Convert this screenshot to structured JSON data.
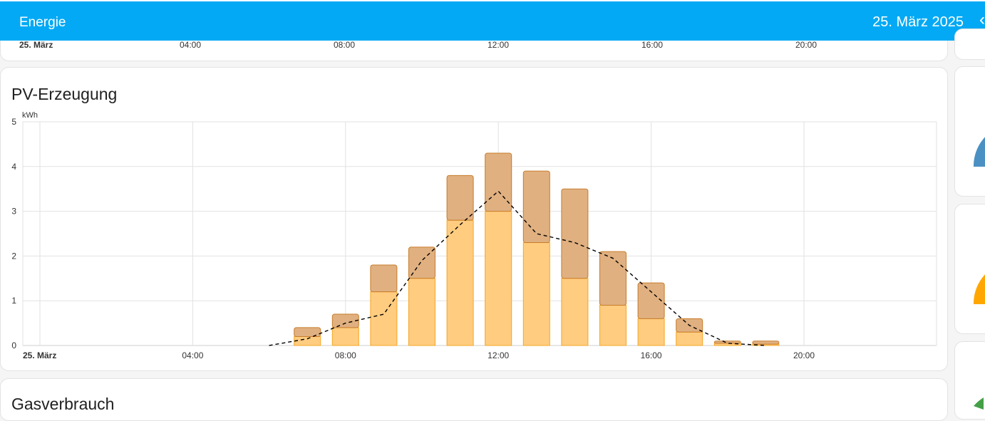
{
  "header": {
    "title": "Energie",
    "date": "25. März 2025",
    "prev_icon": "chevron-left-icon"
  },
  "top_card": {
    "axis_labels": [
      "25. März",
      "04:00",
      "08:00",
      "12:00",
      "16:00",
      "20:00"
    ]
  },
  "pv_card": {
    "title": "PV-Erzeugung"
  },
  "gas_card": {
    "title": "Gasverbrauch"
  },
  "chart_data": {
    "type": "bar",
    "ylabel": "kWh",
    "ylim": [
      0,
      5
    ],
    "yticks": [
      0,
      1,
      2,
      3,
      4,
      5
    ],
    "xtick_labels": [
      "25. März",
      "04:00",
      "08:00",
      "12:00",
      "16:00",
      "20:00"
    ],
    "xtick_hours": [
      0,
      4,
      8,
      12,
      16,
      20
    ],
    "x_hours": [
      7,
      8,
      9,
      10,
      11,
      12,
      13,
      14,
      15,
      16,
      17,
      18,
      19
    ],
    "series": [
      {
        "values": [
          0.2,
          0.4,
          1.2,
          1.5,
          2.8,
          3.0,
          2.3,
          1.5,
          0.9,
          0.6,
          0.3,
          0.05,
          0.03
        ],
        "color": "#ffcc80",
        "stroke": "#f5a623"
      },
      {
        "values": [
          0.2,
          0.3,
          0.6,
          0.7,
          1.0,
          1.3,
          1.6,
          2.0,
          1.2,
          0.8,
          0.3,
          0.05,
          0.07
        ],
        "color": "#e0b080",
        "stroke": "#c77c2c"
      }
    ],
    "forecast_line": {
      "x_hours": [
        6,
        7,
        8,
        9,
        10,
        11,
        12,
        13,
        14,
        15,
        16,
        17,
        18,
        19
      ],
      "values": [
        0.0,
        0.15,
        0.5,
        0.7,
        1.9,
        2.7,
        3.45,
        2.5,
        2.3,
        1.95,
        1.2,
        0.45,
        0.05,
        0.0
      ],
      "style": "dashed",
      "color": "#000000"
    },
    "grid": true,
    "legend": "none"
  }
}
